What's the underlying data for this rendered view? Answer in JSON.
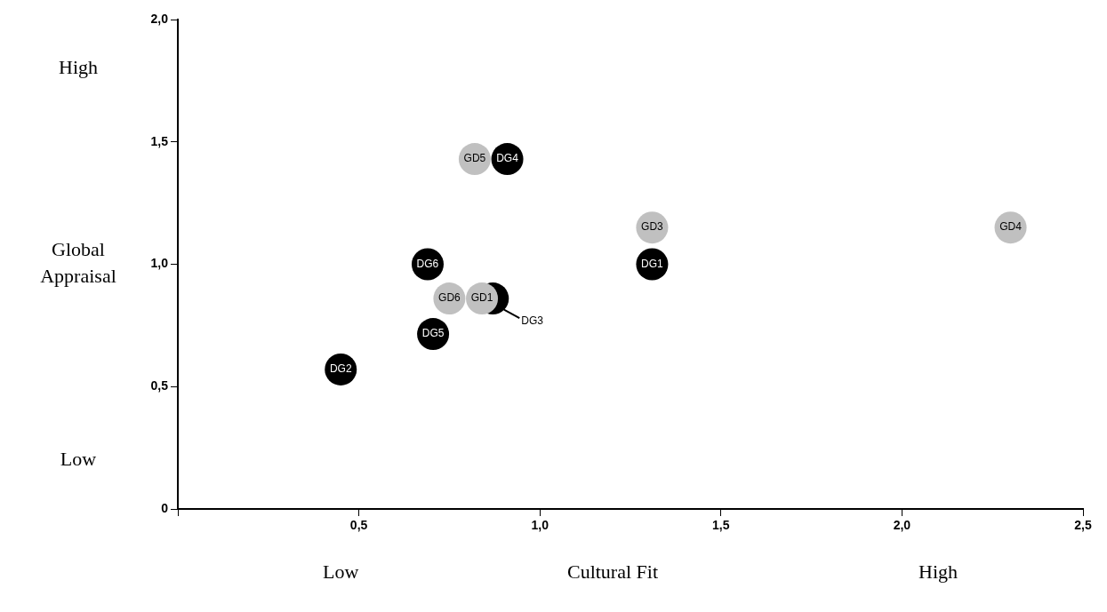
{
  "chart_data": {
    "type": "scatter",
    "xlabel": "Cultural Fit",
    "ylabel": "Global Appraisal",
    "annotations": [
      "High",
      "Low",
      "Low",
      "High"
    ],
    "xlim": [
      0,
      2.5
    ],
    "xticks": [
      {
        "value": 0,
        "label": null
      },
      {
        "value": 0.5,
        "label": "0,5"
      },
      {
        "value": 1,
        "label": "1,0"
      },
      {
        "value": 1.5,
        "label": "1,5"
      },
      {
        "value": 2,
        "label": "2,0"
      },
      {
        "value": 2.5,
        "label": "2,5"
      }
    ],
    "ylim": [
      0,
      2
    ],
    "yticks": [
      {
        "value": 0,
        "label": "0"
      },
      {
        "value": 0.5,
        "label": "0,5"
      },
      {
        "value": 1,
        "label": "1,0"
      },
      {
        "value": 1.5,
        "label": "1,5"
      },
      {
        "value": 2,
        "label": "2,0"
      }
    ],
    "grid": false,
    "legend": false,
    "marker": "circle",
    "series": [
      {
        "color": "#000000",
        "x": [
          1.31,
          0.45,
          0.87,
          0.91,
          0.705,
          0.69
        ],
        "values": [
          1.0,
          0.57,
          0.86,
          1.43,
          0.715,
          1.0
        ],
        "value_labels": [
          "DG1",
          "DG2",
          "DG3",
          "DG4",
          "DG5",
          "DG6"
        ]
      },
      {
        "color": "#c0c0c0",
        "x": [
          0.84,
          1.31,
          2.3,
          0.82,
          0.75
        ],
        "values": [
          0.86,
          1.15,
          1.15,
          1.43,
          0.86
        ],
        "value_labels": [
          "GD1",
          "GD3",
          "GD4",
          "GD5",
          "GD6"
        ]
      }
    ]
  }
}
